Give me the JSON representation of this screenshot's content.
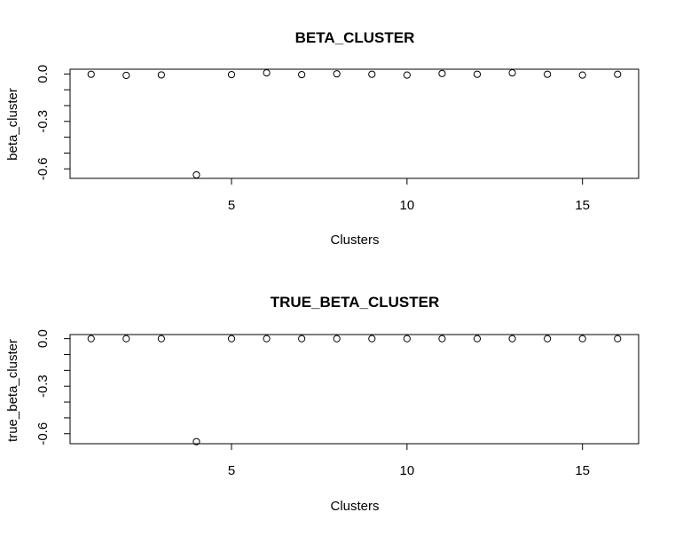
{
  "chart_data": [
    {
      "type": "scatter",
      "title": "BETA_CLUSTER",
      "xlabel": "Clusters",
      "ylabel": "beta_cluster",
      "x": [
        1,
        2,
        3,
        4,
        5,
        6,
        7,
        8,
        9,
        10,
        11,
        12,
        13,
        14,
        15,
        16
      ],
      "y": [
        -0.002,
        -0.009,
        -0.006,
        -0.638,
        -0.004,
        0.007,
        -0.004,
        0.001,
        -0.002,
        -0.007,
        0.003,
        -0.002,
        0.007,
        -0.002,
        -0.007,
        -0.002
      ],
      "xlim": [
        0.4,
        16.6
      ],
      "ylim": [
        -0.66,
        0.03
      ],
      "xticks": [
        "5",
        "10",
        "15"
      ],
      "yticks": [
        "0.0",
        "-0.3",
        "-0.6"
      ],
      "grid": false,
      "marker": "open-circle"
    },
    {
      "type": "scatter",
      "title": "TRUE_BETA_CLUSTER",
      "xlabel": "Clusters",
      "ylabel": "true_beta_cluster",
      "x": [
        1,
        2,
        3,
        4,
        5,
        6,
        7,
        8,
        9,
        10,
        11,
        12,
        13,
        14,
        15,
        16
      ],
      "y": [
        0,
        0,
        0,
        -0.65,
        0,
        0,
        0,
        0,
        0,
        0,
        0,
        0,
        0,
        0,
        0,
        0
      ],
      "xlim": [
        0.4,
        16.6
      ],
      "ylim": [
        -0.663,
        0.026
      ],
      "xticks": [
        "5",
        "10",
        "15"
      ],
      "yticks": [
        "0.0",
        "-0.3",
        "-0.6"
      ],
      "grid": false,
      "marker": "open-circle"
    }
  ]
}
